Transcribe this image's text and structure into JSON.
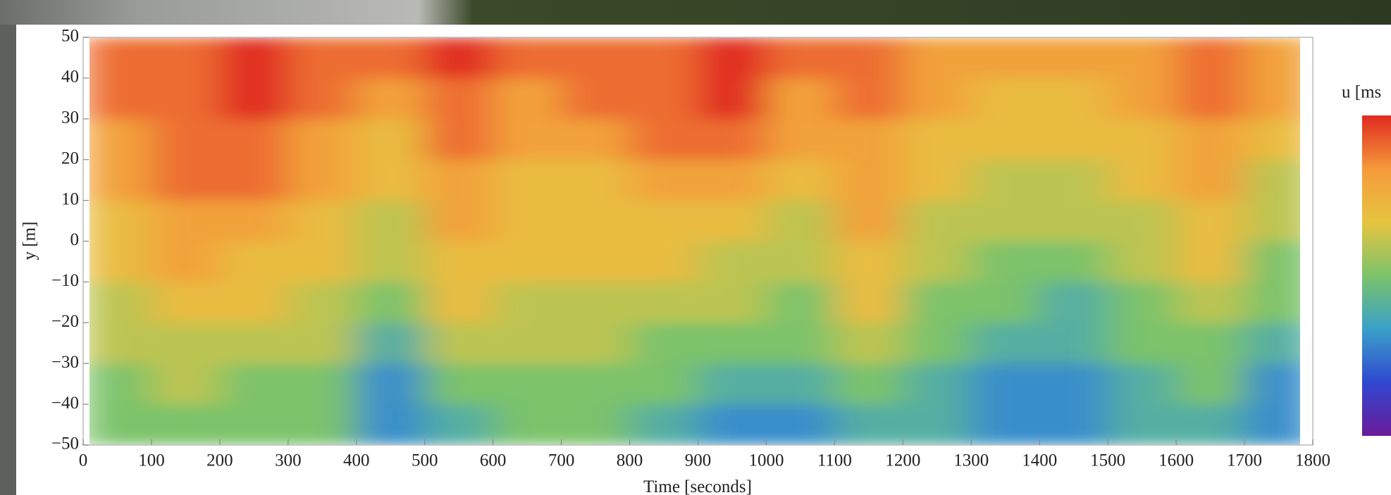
{
  "chart_data": {
    "type": "heatmap",
    "xlabel": "Time [seconds]",
    "ylabel": "y [m]",
    "colorbar_title": "u [ms",
    "xlim": [
      0,
      1800
    ],
    "ylim": [
      -50,
      50
    ],
    "zlim": [
      0,
      1
    ],
    "xticks": [
      0,
      100,
      200,
      300,
      400,
      500,
      600,
      700,
      800,
      900,
      1000,
      1100,
      1200,
      1300,
      1400,
      1500,
      1600,
      1700,
      1800
    ],
    "yticks": [
      50,
      40,
      30,
      20,
      10,
      0,
      {
        "value": -10,
        "label": "−10"
      },
      {
        "value": -20,
        "label": "−20"
      },
      {
        "value": -30,
        "label": "−30"
      },
      {
        "value": -40,
        "label": "−40"
      },
      {
        "value": -50,
        "label": "−50"
      }
    ],
    "colorscale": [
      "#6a1b9a",
      "#3048d0",
      "#3aa0c8",
      "#7cc36a",
      "#e6c440",
      "#f59a3a",
      "#e02a20"
    ],
    "z": [
      [
        0.5,
        0.5,
        0.5,
        0.5,
        0.3,
        0.4,
        0.5,
        0.5,
        0.4,
        0.3,
        0.3,
        0.4,
        0.4,
        0.3,
        0.3,
        0.4,
        0.4,
        0.3
      ],
      [
        0.5,
        0.6,
        0.5,
        0.5,
        0.3,
        0.5,
        0.5,
        0.5,
        0.5,
        0.4,
        0.4,
        0.5,
        0.4,
        0.3,
        0.3,
        0.4,
        0.5,
        0.3
      ],
      [
        0.6,
        0.6,
        0.6,
        0.6,
        0.4,
        0.6,
        0.6,
        0.6,
        0.5,
        0.5,
        0.5,
        0.6,
        0.5,
        0.4,
        0.4,
        0.5,
        0.5,
        0.4
      ],
      [
        0.6,
        0.7,
        0.7,
        0.6,
        0.5,
        0.7,
        0.6,
        0.6,
        0.6,
        0.6,
        0.5,
        0.7,
        0.5,
        0.5,
        0.4,
        0.5,
        0.6,
        0.5
      ],
      [
        0.7,
        0.8,
        0.7,
        0.7,
        0.6,
        0.7,
        0.7,
        0.7,
        0.7,
        0.6,
        0.6,
        0.7,
        0.6,
        0.5,
        0.5,
        0.6,
        0.7,
        0.5
      ],
      [
        0.7,
        0.8,
        0.8,
        0.7,
        0.6,
        0.8,
        0.7,
        0.7,
        0.7,
        0.7,
        0.6,
        0.8,
        0.6,
        0.6,
        0.6,
        0.6,
        0.7,
        0.6
      ],
      [
        0.8,
        0.9,
        0.9,
        0.8,
        0.7,
        0.8,
        0.7,
        0.7,
        0.8,
        0.8,
        0.7,
        0.8,
        0.7,
        0.6,
        0.6,
        0.7,
        0.8,
        0.6
      ],
      [
        0.8,
        0.9,
        0.9,
        0.8,
        0.7,
        0.9,
        0.8,
        0.8,
        0.9,
        0.9,
        0.8,
        0.8,
        0.7,
        0.7,
        0.7,
        0.7,
        0.8,
        0.7
      ],
      [
        0.9,
        0.9,
        1,
        0.9,
        0.8,
        0.9,
        0.8,
        0.9,
        0.9,
        1,
        0.8,
        0.9,
        0.8,
        0.7,
        0.7,
        0.8,
        0.9,
        0.8
      ],
      [
        0.9,
        0.9,
        1,
        0.9,
        0.9,
        1,
        0.9,
        0.9,
        0.9,
        1,
        0.9,
        0.9,
        0.8,
        0.8,
        0.8,
        0.8,
        0.9,
        0.8
      ]
    ]
  }
}
